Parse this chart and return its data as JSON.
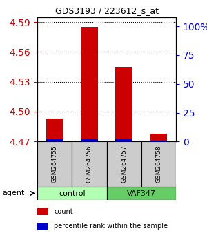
{
  "title": "GDS3193 / 223612_s_at",
  "samples": [
    "GSM264755",
    "GSM264756",
    "GSM264757",
    "GSM264758"
  ],
  "count_values": [
    4.493,
    4.585,
    4.545,
    4.478
  ],
  "percentile_values": [
    4.473,
    4.473,
    4.473,
    4.471
  ],
  "baseline": 4.47,
  "ylim_left": [
    4.47,
    4.595
  ],
  "yticks_left": [
    4.47,
    4.5,
    4.53,
    4.56,
    4.59
  ],
  "yticks_right": [
    0,
    25,
    50,
    75,
    100
  ],
  "ylim_right": [
    0,
    108
  ],
  "groups": [
    {
      "label": "control",
      "samples": [
        0,
        1
      ],
      "color": "#b3ffb3"
    },
    {
      "label": "VAF347",
      "samples": [
        2,
        3
      ],
      "color": "#66cc66"
    }
  ],
  "bar_width": 0.5,
  "red_color": "#cc0000",
  "blue_color": "#0000cc",
  "grid_color": "#000000",
  "left_axis_color": "#cc0000",
  "right_axis_color": "#0000cc",
  "bg_color": "#ffffff",
  "sample_box_color": "#cccccc",
  "agent_label": "agent"
}
